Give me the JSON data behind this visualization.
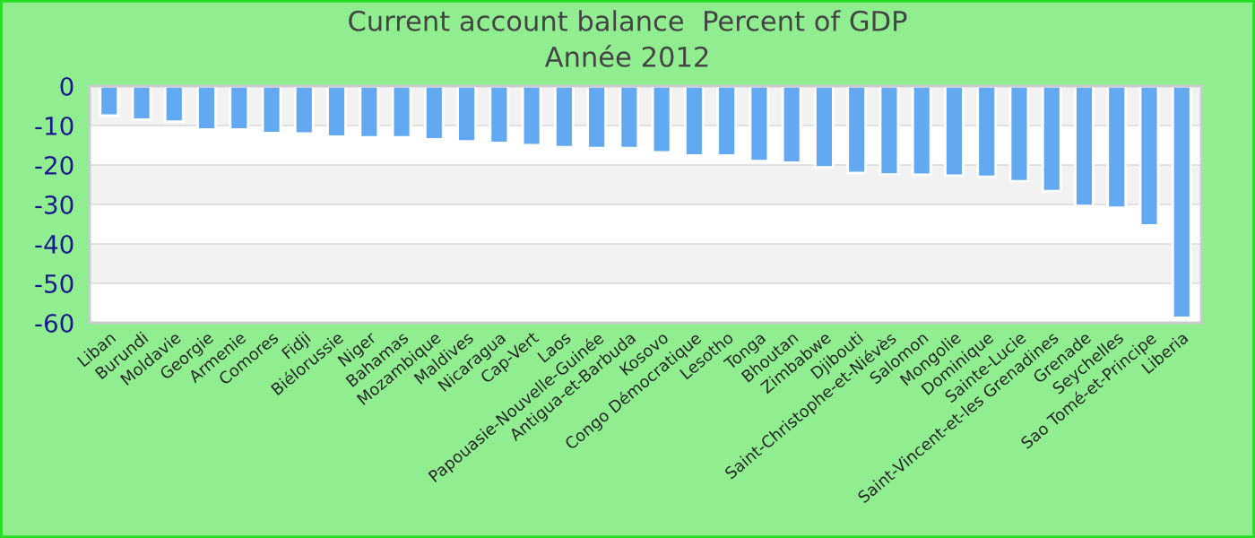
{
  "chart_data": {
    "type": "bar",
    "title": "Current account balance  Percent of GDP",
    "subtitle": "Année 2012",
    "categories": [
      "Liban",
      "Burundi",
      "Moldavie",
      "Georgie",
      "Armenie",
      "Comores",
      "Fidji",
      "Biélorussie",
      "Niger",
      "Bahamas",
      "Mozambique",
      "Maldives",
      "Nicaragua",
      "Cap-Vert",
      "Laos",
      "Papouasie-Nouvelle-Guinée",
      "Antigua-et-Barbuda",
      "Kosovo",
      "Congo Démocratique",
      "Lesotho",
      "Tonga",
      "Bhoutan",
      "Zimbabwe",
      "Djibouti",
      "Saint-Christophe-et-Niévès",
      "Salomon",
      "Mongolie",
      "Dominique",
      "Sainte-Lucie",
      "Saint-Vincent-et-les Grenadines",
      "Grenade",
      "Seychelles",
      "Sao Tomé-et-Principe",
      "Liberia"
    ],
    "values": [
      -7.5,
      -8.5,
      -9,
      -11,
      -11,
      -11.9,
      -12,
      -12.8,
      -13,
      -13,
      -13.5,
      -14,
      -14.4,
      -15,
      -15.5,
      -15.7,
      -15.7,
      -16.8,
      -17.6,
      -17.6,
      -19,
      -19.4,
      -20.6,
      -22,
      -22.4,
      -22.5,
      -22.7,
      -23,
      -24.1,
      -26.6,
      -30.4,
      -30.8,
      -35.3,
      -58.7
    ],
    "color": "#62a9f2",
    "ylim": [
      -60,
      0
    ],
    "yticks": [
      -60,
      -50,
      -40,
      -30,
      -20,
      -10,
      0
    ],
    "grid": "y",
    "legend": false
  }
}
